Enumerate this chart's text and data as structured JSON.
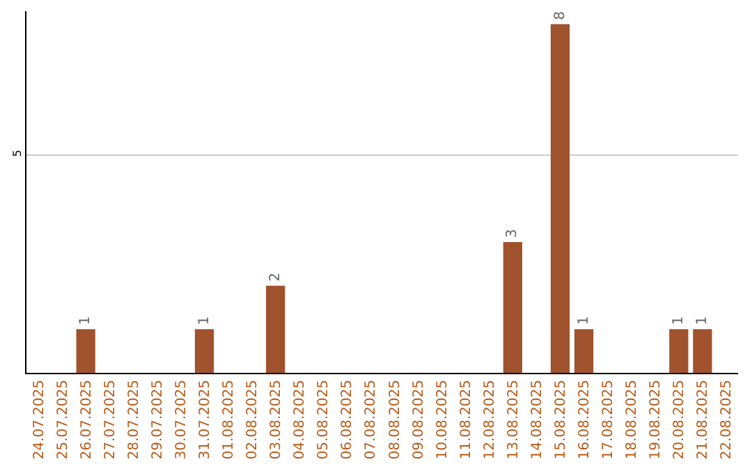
{
  "chart_data": {
    "type": "bar",
    "categories": [
      "24.07.2025",
      "25.07.2025",
      "26.07.2025",
      "27.07.2025",
      "28.07.2025",
      "29.07.2025",
      "30.07.2025",
      "31.07.2025",
      "01.08.2025",
      "02.08.2025",
      "03.08.2025",
      "04.08.2025",
      "05.08.2025",
      "06.08.2025",
      "07.08.2025",
      "08.08.2025",
      "09.08.2025",
      "10.08.2025",
      "11.08.2025",
      "12.08.2025",
      "13.08.2025",
      "14.08.2025",
      "15.08.2025",
      "16.08.2025",
      "17.08.2025",
      "18.08.2025",
      "19.08.2025",
      "20.08.2025",
      "21.08.2025",
      "22.08.2025"
    ],
    "values": [
      0,
      0,
      1,
      0,
      0,
      0,
      0,
      1,
      0,
      0,
      2,
      0,
      0,
      0,
      0,
      0,
      0,
      0,
      0,
      0,
      3,
      0,
      8,
      1,
      0,
      0,
      0,
      1,
      1,
      0
    ],
    "value_labels": [
      null,
      null,
      "1",
      null,
      null,
      null,
      null,
      "1",
      null,
      null,
      "2",
      null,
      null,
      null,
      null,
      null,
      null,
      null,
      null,
      null,
      "3",
      null,
      "8",
      "1",
      null,
      null,
      null,
      "1",
      "1",
      null
    ],
    "color": "#a0522d",
    "ylim": [
      0,
      8.3
    ],
    "yticks": [
      5
    ],
    "grid": "y",
    "legend": false
  }
}
